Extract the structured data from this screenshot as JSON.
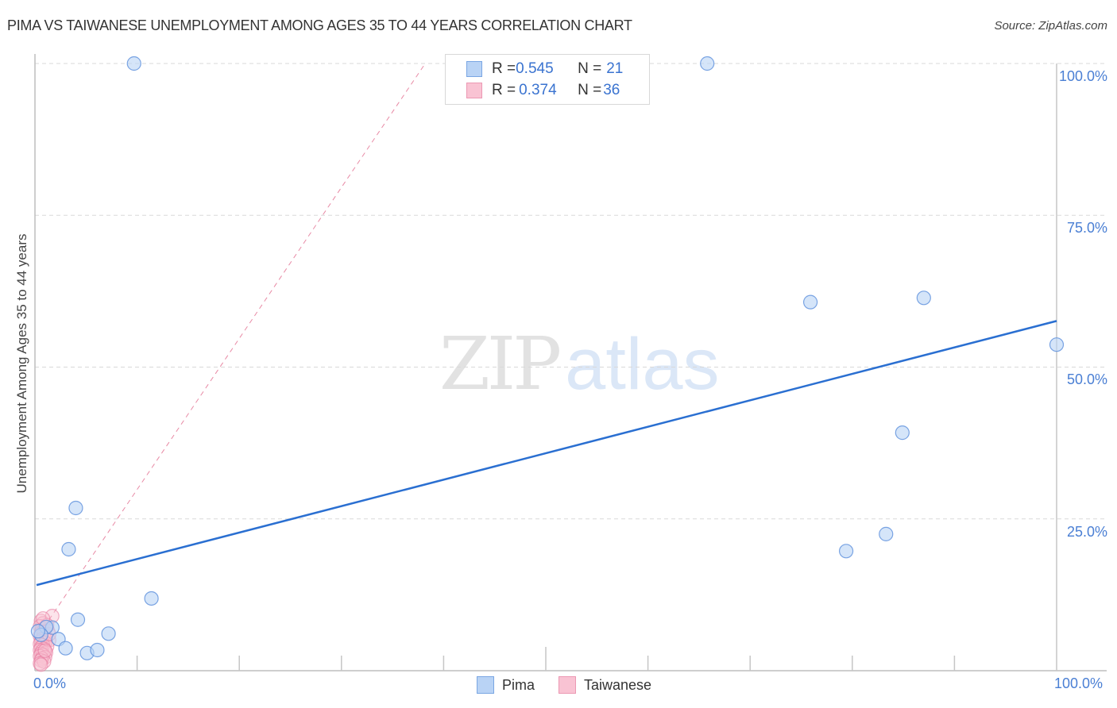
{
  "header": {
    "title": "PIMA VS TAIWANESE UNEMPLOYMENT AMONG AGES 35 TO 44 YEARS CORRELATION CHART",
    "source": "Source: ZipAtlas.com"
  },
  "watermark": {
    "zip": "ZIP",
    "atlas": "atlas"
  },
  "colors": {
    "pima_fill": "#b9d3f5",
    "pima_stroke": "#5b8fdc",
    "pima_trend": "#2a6fd1",
    "taiwanese_fill": "#f9c3d3",
    "taiwanese_stroke": "#e87ca0",
    "taiwanese_trend": "#e88aa5",
    "axis_label": "#4a7fd4",
    "grid": "#d9d9d9"
  },
  "legend_top": {
    "rows": [
      {
        "series": "Pima",
        "r_label": "R = ",
        "r_value": "0.545",
        "n_label": "N = ",
        "n_value": "21"
      },
      {
        "series": "Taiwanese",
        "r_label": "R = ",
        "r_value": "0.374",
        "n_label": "N = ",
        "n_value": "36"
      }
    ]
  },
  "legend_bottom": {
    "items": [
      "Pima",
      "Taiwanese"
    ]
  },
  "axes": {
    "y_ticks": [
      "100.0%",
      "75.0%",
      "50.0%",
      "25.0%"
    ],
    "x_ticks": [
      "0.0%",
      "100.0%"
    ],
    "ylabel": "Unemployment Among Ages 35 to 44 years"
  },
  "chart_data": {
    "type": "scatter",
    "title": "PIMA VS TAIWANESE UNEMPLOYMENT AMONG AGES 35 TO 44 YEARS CORRELATION CHART",
    "xlabel": "",
    "ylabel": "Unemployment Among Ages 35 to 44 years",
    "xlim": [
      0,
      100
    ],
    "ylim": [
      0,
      100
    ],
    "x_tick_labels": [
      "0.0%",
      "100.0%"
    ],
    "y_tick_labels": [
      "25.0%",
      "50.0%",
      "75.0%",
      "100.0%"
    ],
    "grid": "horizontal dashed",
    "legend_position": "bottom center; stats box top center",
    "series": [
      {
        "name": "Pima",
        "R": 0.545,
        "N": 21,
        "points": [
          [
            9.7,
            100
          ],
          [
            65.8,
            100
          ],
          [
            75.9,
            60.7
          ],
          [
            87.0,
            61.4
          ],
          [
            100,
            53.7
          ],
          [
            84.9,
            39.2
          ],
          [
            83.3,
            22.5
          ],
          [
            79.4,
            19.7
          ],
          [
            4.0,
            26.8
          ],
          [
            3.3,
            20.0
          ],
          [
            11.4,
            11.9
          ],
          [
            4.2,
            8.4
          ],
          [
            1.7,
            7.1
          ],
          [
            7.2,
            6.1
          ],
          [
            2.3,
            5.2
          ],
          [
            3.0,
            3.7
          ],
          [
            5.1,
            2.9
          ],
          [
            6.1,
            3.4
          ],
          [
            1.1,
            7.2
          ],
          [
            0.6,
            5.9
          ],
          [
            0.3,
            6.5
          ]
        ],
        "trend": {
          "x0": 0,
          "y0": 14.1,
          "x1": 100,
          "y1": 57.6,
          "style": "solid"
        }
      },
      {
        "name": "Taiwanese",
        "R": 0.374,
        "N": 36,
        "points": [
          [
            0.2,
            8.2
          ],
          [
            0.4,
            7.8
          ],
          [
            0.1,
            7.3
          ],
          [
            0.6,
            7.0
          ],
          [
            0.3,
            6.8
          ],
          [
            0.9,
            6.5
          ],
          [
            0.2,
            6.2
          ],
          [
            0.5,
            6.0
          ],
          [
            0.1,
            5.7
          ],
          [
            0.7,
            5.5
          ],
          [
            0.3,
            5.2
          ],
          [
            1.0,
            5.0
          ],
          [
            0.2,
            4.8
          ],
          [
            0.6,
            4.6
          ],
          [
            0.1,
            4.4
          ],
          [
            0.4,
            4.2
          ],
          [
            0.8,
            4.0
          ],
          [
            0.2,
            3.8
          ],
          [
            0.5,
            3.6
          ],
          [
            0.1,
            3.4
          ],
          [
            0.3,
            3.2
          ],
          [
            0.7,
            3.0
          ],
          [
            0.2,
            2.8
          ],
          [
            0.4,
            2.6
          ],
          [
            0.1,
            2.4
          ],
          [
            0.6,
            2.2
          ],
          [
            0.3,
            2.0
          ],
          [
            0.2,
            1.7
          ],
          [
            0.5,
            1.5
          ],
          [
            0.1,
            1.2
          ],
          [
            1.3,
            9.0
          ],
          [
            1.0,
            6.0
          ],
          [
            0.8,
            7.5
          ],
          [
            0.4,
            8.6
          ],
          [
            0.2,
            1.0
          ],
          [
            0.6,
            3.3
          ]
        ],
        "trend": {
          "x0": 0.9,
          "y0": 7.2,
          "x1": 38.2,
          "y1": 100,
          "style": "dashed"
        }
      }
    ]
  }
}
